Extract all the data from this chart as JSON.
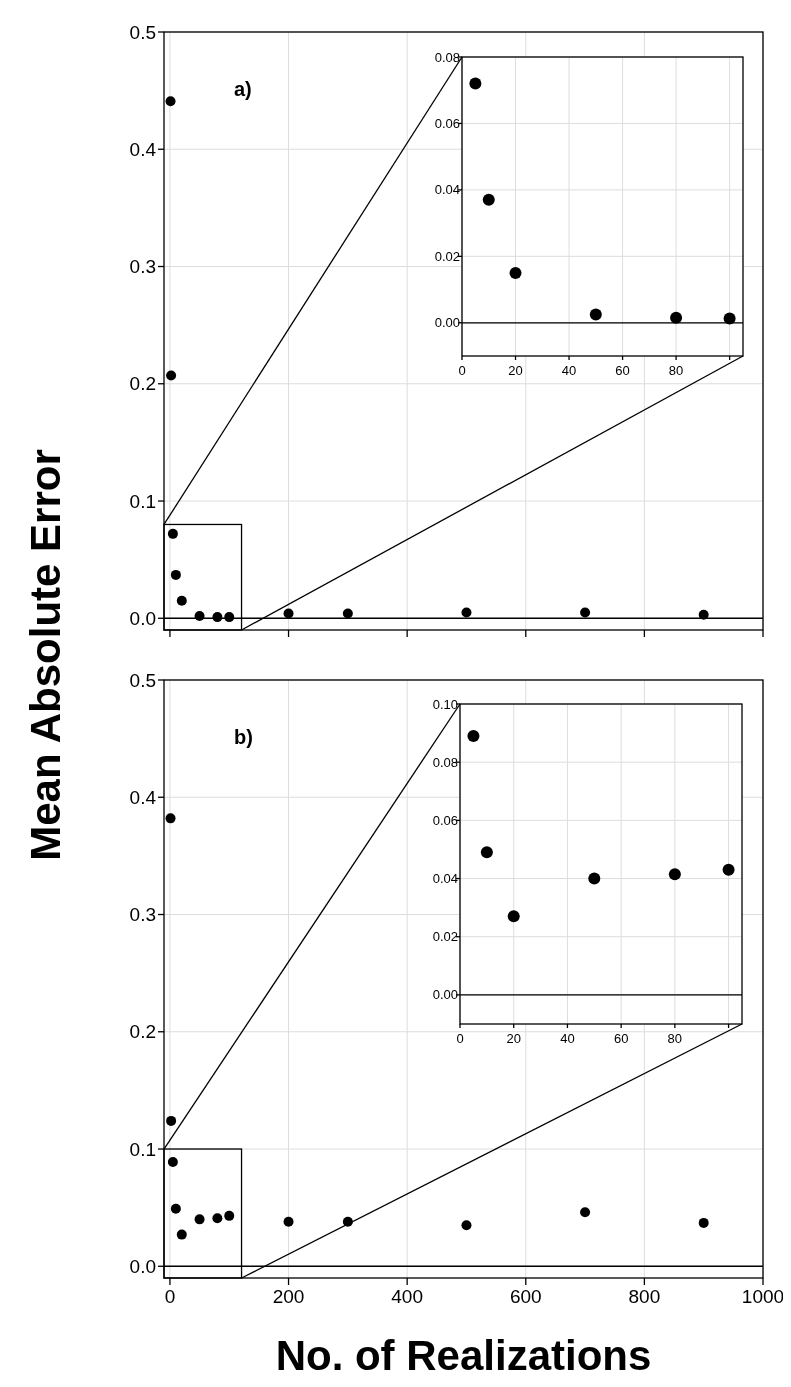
{
  "chart_data": [
    {
      "type": "scatter",
      "ylabel": "Mean Absolute Error",
      "annotations": [
        "a)"
      ],
      "x": [
        1,
        2,
        5,
        10,
        20,
        50,
        80,
        100,
        200,
        300,
        500,
        700,
        900
      ],
      "series": [
        {
          "color": "#000000",
          "values": [
            0.441,
            0.207,
            0.072,
            0.037,
            0.015,
            0.002,
            0.001,
            0.001,
            0.004,
            0.004,
            0.005,
            0.005,
            0.003
          ]
        }
      ],
      "xlim": [
        -10,
        1000
      ],
      "ylim": [
        -0.01,
        0.5
      ],
      "xticks": [
        0,
        200,
        400,
        600,
        800,
        1000
      ],
      "yticks": [
        {
          "value": 0,
          "label": "0.0"
        },
        0.1,
        0.2,
        0.3,
        0.4,
        0.5
      ],
      "tick_labels": "y",
      "grid": true,
      "marker": "circle",
      "ref_lines": [
        {
          "axis": "y",
          "value": 0
        }
      ]
    },
    {
      "type": "scatter",
      "x": [
        5,
        10,
        20,
        50,
        80,
        100
      ],
      "series": [
        {
          "color": "#000000",
          "values": [
            0.072,
            0.037,
            0.015,
            0.0025,
            0.0015,
            0.0013
          ]
        }
      ],
      "xlim": [
        0,
        105
      ],
      "ylim": [
        -0.01,
        0.08
      ],
      "xticks": [
        0,
        20,
        40,
        60,
        80,
        {
          "value": 100,
          "label": null
        }
      ],
      "yticks": [
        {
          "value": 0,
          "label": "0.00"
        },
        {
          "value": 0.02,
          "label": "0.02"
        },
        {
          "value": 0.04,
          "label": "0.04"
        },
        {
          "value": 0.06,
          "label": "0.06"
        },
        {
          "value": 0.08,
          "label": "0.08"
        }
      ],
      "grid": true,
      "marker": "circle",
      "ref_lines": [
        {
          "axis": "y",
          "value": 0
        }
      ]
    },
    {
      "type": "scatter",
      "xlabel": "No. of Realizations",
      "annotations": [
        "b)"
      ],
      "x": [
        1,
        2,
        5,
        10,
        20,
        50,
        80,
        100,
        200,
        300,
        500,
        700,
        900
      ],
      "series": [
        {
          "color": "#000000",
          "values": [
            0.382,
            0.124,
            0.089,
            0.049,
            0.027,
            0.04,
            0.041,
            0.043,
            0.038,
            0.038,
            0.035,
            0.046,
            0.037
          ]
        }
      ],
      "xlim": [
        -10,
        1000
      ],
      "ylim": [
        -0.01,
        0.5
      ],
      "xticks": [
        0,
        200,
        400,
        600,
        800,
        1000
      ],
      "yticks": [
        {
          "value": 0,
          "label": "0.0"
        },
        0.1,
        0.2,
        0.3,
        0.4,
        0.5
      ],
      "grid": true,
      "marker": "circle",
      "ref_lines": [
        {
          "axis": "y",
          "value": 0
        }
      ]
    },
    {
      "type": "scatter",
      "x": [
        5,
        10,
        20,
        50,
        80,
        100
      ],
      "series": [
        {
          "color": "#000000",
          "values": [
            0.089,
            0.049,
            0.027,
            0.04,
            0.0415,
            0.043
          ]
        }
      ],
      "xlim": [
        0,
        105
      ],
      "ylim": [
        -0.01,
        0.1
      ],
      "xticks": [
        0,
        20,
        40,
        60,
        80,
        {
          "value": 100,
          "label": null
        }
      ],
      "yticks": [
        {
          "value": 0,
          "label": "0.00"
        },
        {
          "value": 0.02,
          "label": "0.02"
        },
        {
          "value": 0.04,
          "label": "0.04"
        },
        {
          "value": 0.06,
          "label": "0.06"
        },
        {
          "value": 0.08,
          "label": "0.08"
        },
        {
          "value": 0.1,
          "label": "0.10"
        }
      ],
      "grid": true,
      "marker": "circle",
      "ref_lines": [
        {
          "axis": "y",
          "value": 0
        }
      ]
    }
  ]
}
